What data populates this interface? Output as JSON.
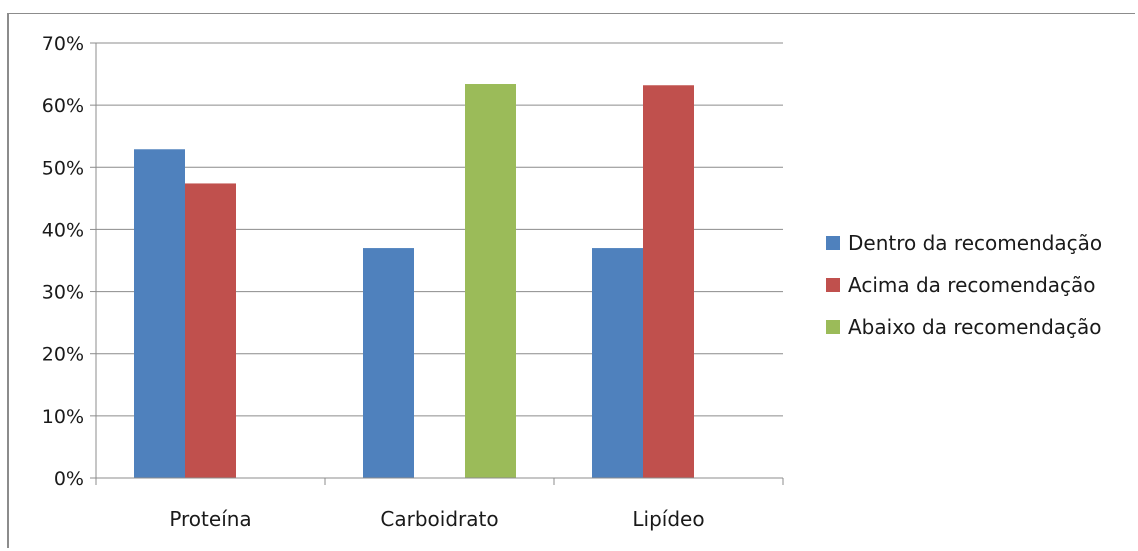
{
  "chart_data": {
    "type": "bar",
    "title": "",
    "xlabel": "",
    "ylabel": "",
    "categories": [
      "Proteína",
      "Carboidrato",
      "Lipídeo"
    ],
    "series": [
      {
        "name": "Dentro da recomendação",
        "color": "#4f81bd",
        "values": [
          52.9,
          37.0,
          37.0
        ]
      },
      {
        "name": "Acima da recomendação",
        "color": "#c0504d",
        "values": [
          47.4,
          null,
          63.2
        ]
      },
      {
        "name": "Abaixo da recomendação",
        "color": "#9bbb59",
        "values": [
          null,
          63.4,
          null
        ]
      }
    ],
    "ylim": [
      0,
      70
    ],
    "yticks": [
      0,
      10,
      20,
      30,
      40,
      50,
      60,
      70
    ],
    "ytick_labels": [
      "0%",
      "10%",
      "20%",
      "30%",
      "40%",
      "50%",
      "60%",
      "70%"
    ],
    "grid": true,
    "legend_position": "right"
  }
}
